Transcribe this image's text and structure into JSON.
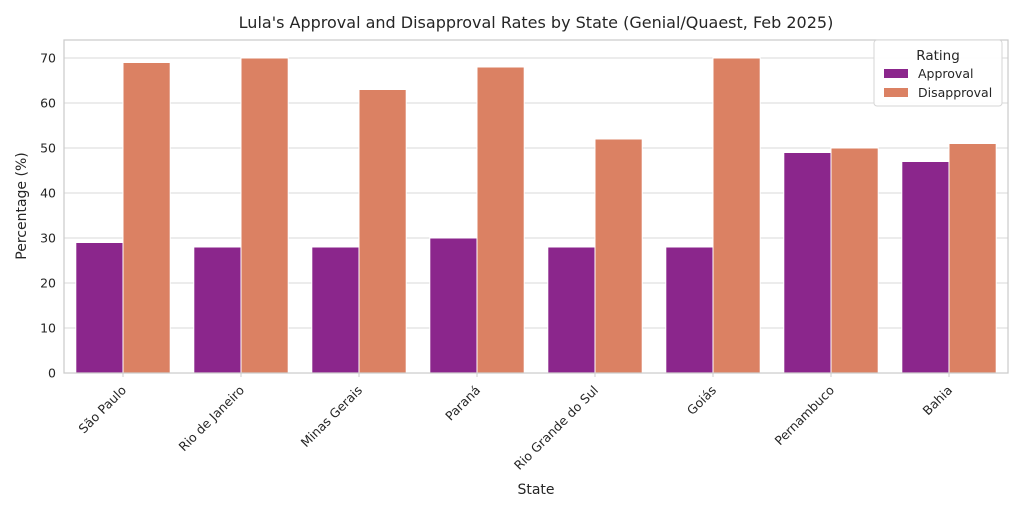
{
  "chart_data": {
    "type": "bar",
    "title": "Lula's Approval and Disapproval Rates by State (Genial/Quaest, Feb 2025)",
    "xlabel": "State",
    "ylabel": "Percentage (%)",
    "ylim": [
      0,
      74
    ],
    "yticks": [
      0,
      10,
      20,
      30,
      40,
      50,
      60,
      70
    ],
    "grid": true,
    "legend": {
      "title": "Rating",
      "placement": "top-right"
    },
    "categories": [
      "São Paulo",
      "Rio de Janeiro",
      "Minas Gerais",
      "Paraná",
      "Rio Grande do Sul",
      "Goiás",
      "Pernambuco",
      "Bahia"
    ],
    "series": [
      {
        "name": "Approval",
        "color": "#8B268C",
        "values": [
          29,
          28,
          28,
          30,
          28,
          28,
          49,
          47
        ]
      },
      {
        "name": "Disapproval",
        "color": "#DB8163",
        "values": [
          69,
          70,
          63,
          68,
          52,
          70,
          50,
          51
        ]
      }
    ]
  }
}
